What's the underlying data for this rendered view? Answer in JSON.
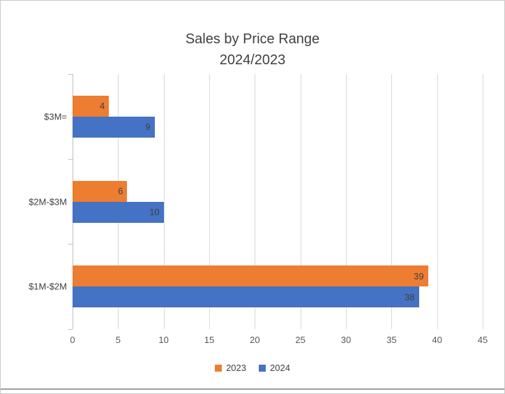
{
  "window": {
    "background": "#ffffff",
    "border_color": "#c9c9c9"
  },
  "chart_data": {
    "type": "bar",
    "orientation": "horizontal",
    "title": "Sales by Price Range",
    "subtitle": "2024/2023",
    "categories": [
      "$3M=",
      "$2M-$3M",
      "$1M-$2M"
    ],
    "series": [
      {
        "name": "2023",
        "color": "#ED7D31",
        "values": [
          4,
          6,
          39
        ]
      },
      {
        "name": "2024",
        "color": "#4472C4",
        "values": [
          9,
          10,
          38
        ]
      }
    ],
    "xlim": [
      0,
      45
    ],
    "x_tick_step": 5,
    "x_ticks": [
      0,
      5,
      10,
      15,
      20,
      25,
      30,
      35,
      40,
      45
    ],
    "grid": true,
    "data_labels": true,
    "legend_position": "bottom",
    "colors": {
      "gridline": "#d9d9d9",
      "axis": "#bfbfbf",
      "tick_label": "#595959",
      "category_label": "#404040",
      "data_label": "#404040",
      "title": "#3f3f3f"
    }
  }
}
